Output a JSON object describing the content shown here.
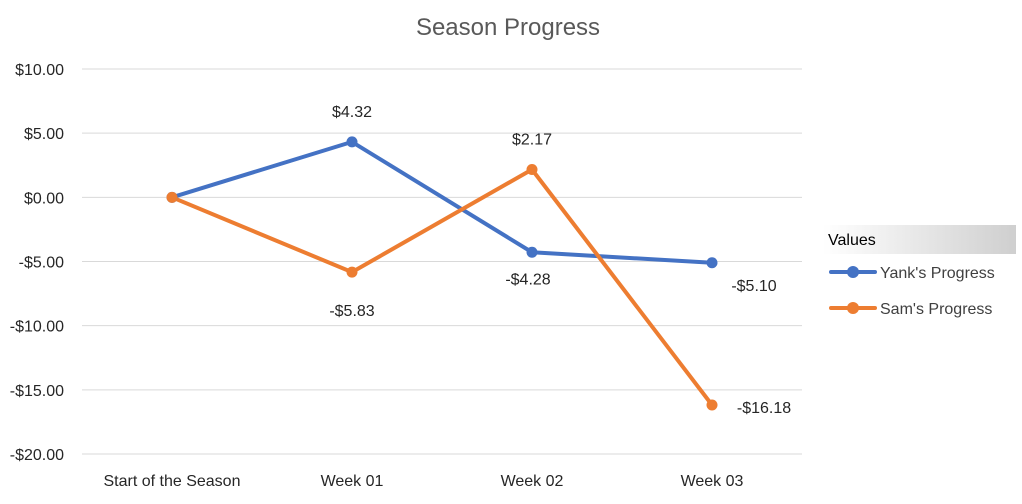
{
  "chart_data": {
    "type": "line",
    "title": "Season Progress",
    "categories": [
      "Start of the Season",
      "Week 01",
      "Week 02",
      "Week 03"
    ],
    "series": [
      {
        "name": "Yank's Progress",
        "color": "#4472C4",
        "values": [
          0.0,
          4.32,
          -4.28,
          -5.1
        ],
        "labels": [
          "",
          "$4.32",
          "-$4.28",
          "-$5.10"
        ]
      },
      {
        "name": "Sam's Progress",
        "color": "#ED7D31",
        "values": [
          0.0,
          -5.83,
          2.17,
          -16.18
        ],
        "labels": [
          "",
          "-$5.83",
          "$2.17",
          "-$16.18"
        ]
      }
    ],
    "ylim": [
      -20,
      10
    ],
    "yticks": [
      10,
      5,
      0,
      -5,
      -10,
      -15,
      -20
    ],
    "ytick_labels": [
      "$10.00",
      "$5.00",
      "$0.00",
      "-$5.00",
      "-$10.00",
      "-$15.00",
      "-$20.00"
    ],
    "xlabel": "",
    "ylabel": "",
    "grid": true,
    "gridline_color": "#D9D9D9",
    "legend": {
      "title": "Values",
      "position": "right"
    }
  }
}
